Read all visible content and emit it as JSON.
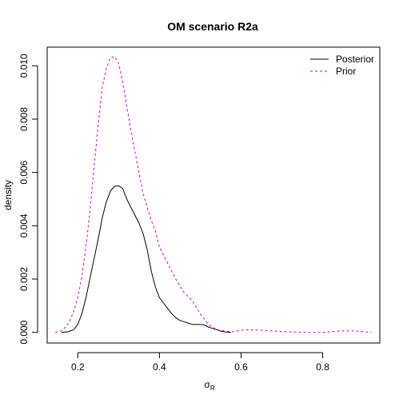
{
  "chart_data": {
    "type": "line",
    "title": "OM scenario R2a",
    "xlabel_symbol": "σ",
    "xlabel_subscript": "R",
    "ylabel": "density",
    "xlim": [
      0.125,
      0.94
    ],
    "ylim": [
      -0.0004,
      0.0107
    ],
    "x_ticks": [
      0.2,
      0.4,
      0.6,
      0.8
    ],
    "x_tick_labels": [
      "0.2",
      "0.4",
      "0.6",
      "0.8"
    ],
    "y_ticks": [
      0.0,
      0.002,
      0.004,
      0.006,
      0.008,
      0.01
    ],
    "y_tick_labels": [
      "0.000",
      "0.002",
      "0.004",
      "0.006",
      "0.008",
      "0.010"
    ],
    "legend_position": "top-right",
    "series": [
      {
        "name": "Posterior",
        "color": "#000000",
        "dash": "solid",
        "x": [
          0.16,
          0.175,
          0.19,
          0.2,
          0.21,
          0.22,
          0.235,
          0.25,
          0.26,
          0.27,
          0.28,
          0.29,
          0.3,
          0.31,
          0.32,
          0.33,
          0.34,
          0.35,
          0.36,
          0.37,
          0.38,
          0.39,
          0.4,
          0.41,
          0.42,
          0.43,
          0.44,
          0.45,
          0.46,
          0.47,
          0.48,
          0.49,
          0.5,
          0.51,
          0.52,
          0.53,
          0.54,
          0.55,
          0.56,
          0.575
        ],
        "y": [
          0.0,
          2e-05,
          0.0001,
          0.0003,
          0.0007,
          0.0013,
          0.0024,
          0.0035,
          0.0043,
          0.0049,
          0.0053,
          0.00548,
          0.0055,
          0.0054,
          0.005,
          0.0047,
          0.0044,
          0.0041,
          0.0037,
          0.0031,
          0.0023,
          0.0017,
          0.0013,
          0.0011,
          0.0009,
          0.0007,
          0.00055,
          0.00045,
          0.0004,
          0.00035,
          0.0003,
          0.0003,
          0.0003,
          0.00028,
          0.0002,
          0.00015,
          0.0001,
          5e-05,
          2e-05,
          0.0
        ]
      },
      {
        "name": "Prior",
        "color": "#cc00cc",
        "dash": "dashed",
        "x": [
          0.145,
          0.16,
          0.17,
          0.18,
          0.19,
          0.2,
          0.21,
          0.22,
          0.23,
          0.24,
          0.25,
          0.26,
          0.27,
          0.28,
          0.29,
          0.3,
          0.31,
          0.32,
          0.33,
          0.34,
          0.35,
          0.36,
          0.37,
          0.38,
          0.39,
          0.4,
          0.42,
          0.44,
          0.46,
          0.48,
          0.5,
          0.52,
          0.54,
          0.56,
          0.58,
          0.6,
          0.62,
          0.65,
          0.7,
          0.75,
          0.8,
          0.84,
          0.87,
          0.9,
          0.92
        ],
        "y": [
          0.0,
          5e-05,
          0.0002,
          0.0004,
          0.0008,
          0.0013,
          0.0021,
          0.0032,
          0.0046,
          0.0062,
          0.0078,
          0.0092,
          0.0099,
          0.0103,
          0.01035,
          0.0101,
          0.0094,
          0.0085,
          0.0076,
          0.0068,
          0.006,
          0.0052,
          0.0047,
          0.0042,
          0.0038,
          0.0032,
          0.0026,
          0.002,
          0.0015,
          0.0012,
          0.0007,
          0.0003,
          0.0001,
          5e-05,
          3e-05,
          8e-05,
          0.0001,
          8e-05,
          3e-05,
          0.0,
          0.0,
          5e-05,
          6e-05,
          3e-05,
          0.0
        ]
      }
    ]
  }
}
